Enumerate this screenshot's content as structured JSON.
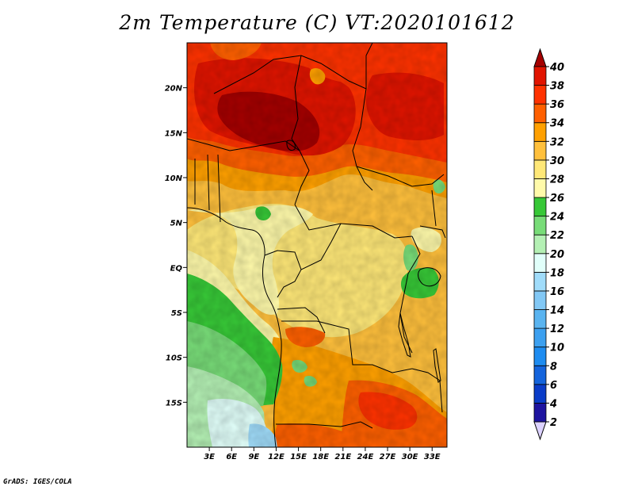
{
  "title": "2m Temperature (C) VT:2020101612",
  "footer": "GrADS: IGES/COLA",
  "map": {
    "variable": "2m temperature",
    "units": "C",
    "lon_range": [
      0,
      35
    ],
    "lat_range": [
      -20,
      25
    ],
    "lon_ticks": [
      {
        "value": 3,
        "label": "3E"
      },
      {
        "value": 6,
        "label": "6E"
      },
      {
        "value": 9,
        "label": "9E"
      },
      {
        "value": 12,
        "label": "12E"
      },
      {
        "value": 15,
        "label": "15E"
      },
      {
        "value": 18,
        "label": "18E"
      },
      {
        "value": 21,
        "label": "21E"
      },
      {
        "value": 24,
        "label": "24E"
      },
      {
        "value": 27,
        "label": "27E"
      },
      {
        "value": 30,
        "label": "30E"
      },
      {
        "value": 33,
        "label": "33E"
      }
    ],
    "lat_ticks": [
      {
        "value": 20,
        "label": "20N"
      },
      {
        "value": 15,
        "label": "15N"
      },
      {
        "value": 10,
        "label": "10N"
      },
      {
        "value": 5,
        "label": "5N"
      },
      {
        "value": 0,
        "label": "EQ"
      },
      {
        "value": -5,
        "label": "5S"
      },
      {
        "value": -10,
        "label": "10S"
      },
      {
        "value": -15,
        "label": "15S"
      }
    ]
  },
  "colorbar": {
    "levels": [
      2,
      4,
      6,
      8,
      10,
      12,
      14,
      16,
      18,
      20,
      22,
      24,
      26,
      28,
      30,
      32,
      34,
      36,
      38,
      40
    ],
    "level_labels": [
      "2",
      "4",
      "6",
      "8",
      "10",
      "12",
      "14",
      "16",
      "18",
      "20",
      "22",
      "24",
      "26",
      "28",
      "30",
      "32",
      "34",
      "36",
      "38",
      "40"
    ],
    "colors": [
      "#1e14a0",
      "#0a3cc8",
      "#1464dc",
      "#1e8cf0",
      "#3ca0f0",
      "#5ab4f0",
      "#82c8f5",
      "#a0dcfa",
      "#e1fffa",
      "#b4f0b4",
      "#78dc78",
      "#37c837",
      "#fffaaa",
      "#ffe878",
      "#ffc03c",
      "#ffa000",
      "#ff6000",
      "#ff3200",
      "#e11400",
      "#a50000"
    ],
    "under_color": "#dcd2ff",
    "over_color": "#a50000"
  }
}
